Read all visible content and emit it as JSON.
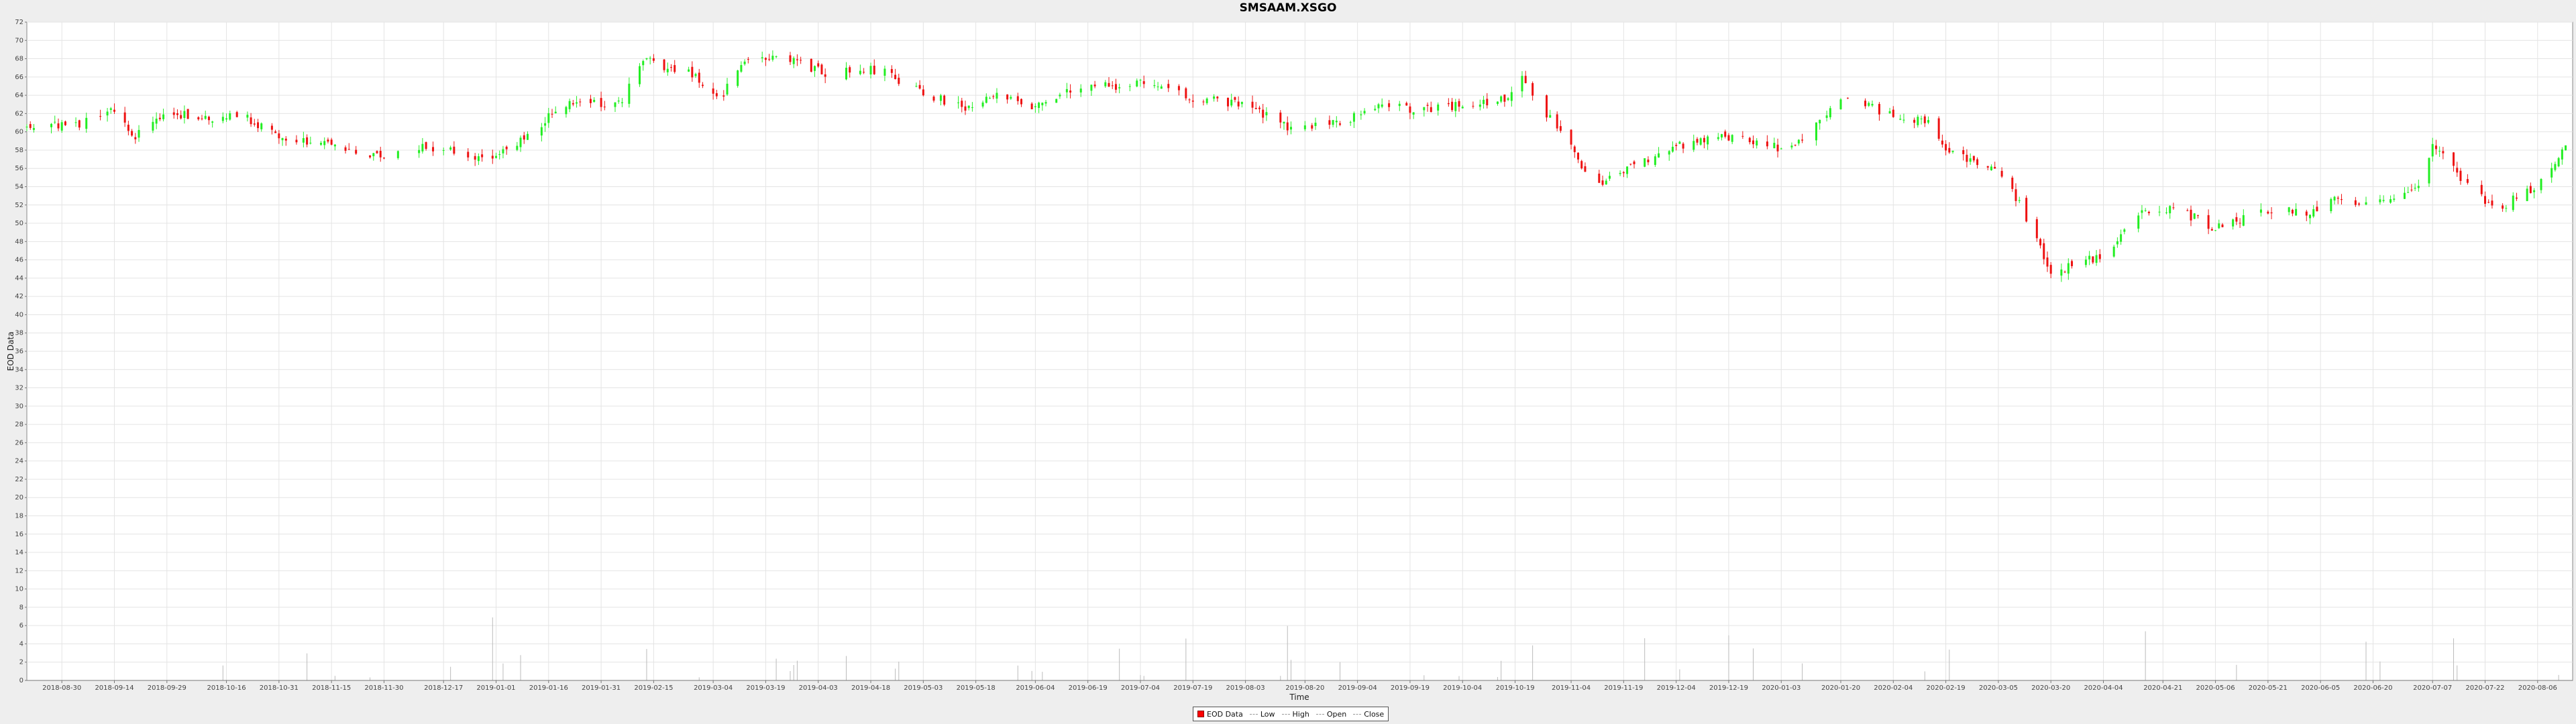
{
  "colors": {
    "up": "#22ee22",
    "down": "#ee1111",
    "volume": "#bbbbbb",
    "grid": "#e4e4e4",
    "plot_bg": "#ffffff"
  },
  "chart_data": {
    "type": "candlestick",
    "title": "SMSAAM.XSGO",
    "xlabel": "Time",
    "ylabel": "EOD Data",
    "ylim": [
      0,
      72
    ],
    "yticks": [
      0,
      2,
      4,
      6,
      8,
      10,
      12,
      14,
      16,
      18,
      20,
      22,
      24,
      26,
      28,
      30,
      32,
      34,
      36,
      38,
      40,
      42,
      44,
      46,
      48,
      50,
      52,
      54,
      56,
      58,
      60,
      62,
      64,
      66,
      68,
      70,
      72
    ],
    "xlim": [
      "2018-08-20",
      "2020-08-16"
    ],
    "xticks": [
      "2018-08-30",
      "2018-09-14",
      "2018-09-29",
      "2018-10-16",
      "2018-10-31",
      "2018-11-15",
      "2018-11-30",
      "2018-12-17",
      "2019-01-01",
      "2019-01-16",
      "2019-01-31",
      "2019-02-15",
      "2019-03-04",
      "2019-03-19",
      "2019-04-03",
      "2019-04-18",
      "2019-05-03",
      "2019-05-18",
      "2019-06-04",
      "2019-06-19",
      "2019-07-04",
      "2019-07-19",
      "2019-08-03",
      "2019-08-20",
      "2019-09-04",
      "2019-09-19",
      "2019-10-04",
      "2019-10-19",
      "2019-11-04",
      "2019-11-19",
      "2019-12-04",
      "2019-12-19",
      "2020-01-03",
      "2020-01-20",
      "2020-02-04",
      "2020-02-19",
      "2020-03-05",
      "2020-03-20",
      "2020-04-04",
      "2020-04-21",
      "2020-05-06",
      "2020-05-21",
      "2020-06-05",
      "2020-06-20",
      "2020-07-07",
      "2020-07-22",
      "2020-08-06"
    ],
    "legend": [
      "EOD Data",
      "Low",
      "High",
      "Open",
      "Close"
    ],
    "legend_position": "bottom-center",
    "grid": true,
    "price_anchors": [
      {
        "date": "2018-08-20",
        "close": 60.5
      },
      {
        "date": "2018-09-05",
        "close": 61.0
      },
      {
        "date": "2018-09-12",
        "close": 62.5
      },
      {
        "date": "2018-09-20",
        "close": 59.5
      },
      {
        "date": "2018-09-28",
        "close": 62.2
      },
      {
        "date": "2018-10-10",
        "close": 61.5
      },
      {
        "date": "2018-10-20",
        "close": 62.0
      },
      {
        "date": "2018-10-30",
        "close": 59.5
      },
      {
        "date": "2018-11-15",
        "close": 58.5
      },
      {
        "date": "2018-11-28",
        "close": 57.2
      },
      {
        "date": "2018-12-05",
        "close": 58.5
      },
      {
        "date": "2018-12-20",
        "close": 58.0
      },
      {
        "date": "2018-12-28",
        "close": 56.8
      },
      {
        "date": "2019-01-10",
        "close": 59.5
      },
      {
        "date": "2019-01-20",
        "close": 63.0
      },
      {
        "date": "2019-02-05",
        "close": 63.0
      },
      {
        "date": "2019-02-12",
        "close": 67.8
      },
      {
        "date": "2019-02-25",
        "close": 66.5
      },
      {
        "date": "2019-03-06",
        "close": 63.5
      },
      {
        "date": "2019-03-12",
        "close": 67.5
      },
      {
        "date": "2019-03-25",
        "close": 68.0
      },
      {
        "date": "2019-04-05",
        "close": 66.5
      },
      {
        "date": "2019-04-20",
        "close": 66.8
      },
      {
        "date": "2019-05-05",
        "close": 64.0
      },
      {
        "date": "2019-05-15",
        "close": 62.5
      },
      {
        "date": "2019-05-25",
        "close": 64.0
      },
      {
        "date": "2019-06-04",
        "close": 62.8
      },
      {
        "date": "2019-06-15",
        "close": 64.8
      },
      {
        "date": "2019-07-04",
        "close": 65.2
      },
      {
        "date": "2019-07-19",
        "close": 63.8
      },
      {
        "date": "2019-08-03",
        "close": 63.0
      },
      {
        "date": "2019-08-15",
        "close": 60.5
      },
      {
        "date": "2019-08-30",
        "close": 61.0
      },
      {
        "date": "2019-09-10",
        "close": 63.0
      },
      {
        "date": "2019-09-20",
        "close": 62.5
      },
      {
        "date": "2019-10-05",
        "close": 63.0
      },
      {
        "date": "2019-10-17",
        "close": 63.5
      },
      {
        "date": "2019-10-20",
        "close": 66.5
      },
      {
        "date": "2019-10-28",
        "close": 62.0
      },
      {
        "date": "2019-11-04",
        "close": 58.5
      },
      {
        "date": "2019-11-10",
        "close": 53.5
      },
      {
        "date": "2019-11-20",
        "close": 56.0
      },
      {
        "date": "2019-12-04",
        "close": 58.5
      },
      {
        "date": "2019-12-20",
        "close": 59.5
      },
      {
        "date": "2020-01-05",
        "close": 58.0
      },
      {
        "date": "2020-01-20",
        "close": 63.5
      },
      {
        "date": "2020-02-04",
        "close": 62.0
      },
      {
        "date": "2020-02-15",
        "close": 61.0
      },
      {
        "date": "2020-02-19",
        "close": 58.0
      },
      {
        "date": "2020-03-05",
        "close": 56.0
      },
      {
        "date": "2020-03-12",
        "close": 51.5
      },
      {
        "date": "2020-03-20",
        "close": 44.5
      },
      {
        "date": "2020-04-04",
        "close": 46.5
      },
      {
        "date": "2020-04-15",
        "close": 51.0
      },
      {
        "date": "2020-04-25",
        "close": 51.5
      },
      {
        "date": "2020-05-06",
        "close": 49.5
      },
      {
        "date": "2020-05-21",
        "close": 51.5
      },
      {
        "date": "2020-06-05",
        "close": 51.0
      },
      {
        "date": "2020-06-10",
        "close": 53.0
      },
      {
        "date": "2020-06-20",
        "close": 52.0
      },
      {
        "date": "2020-07-04",
        "close": 54.5
      },
      {
        "date": "2020-07-07",
        "close": 59.0
      },
      {
        "date": "2020-07-15",
        "close": 55.0
      },
      {
        "date": "2020-07-25",
        "close": 51.5
      },
      {
        "date": "2020-08-06",
        "close": 54.0
      },
      {
        "date": "2020-08-15",
        "close": 59.0
      }
    ],
    "volume_series_range": [
      0,
      8
    ]
  }
}
